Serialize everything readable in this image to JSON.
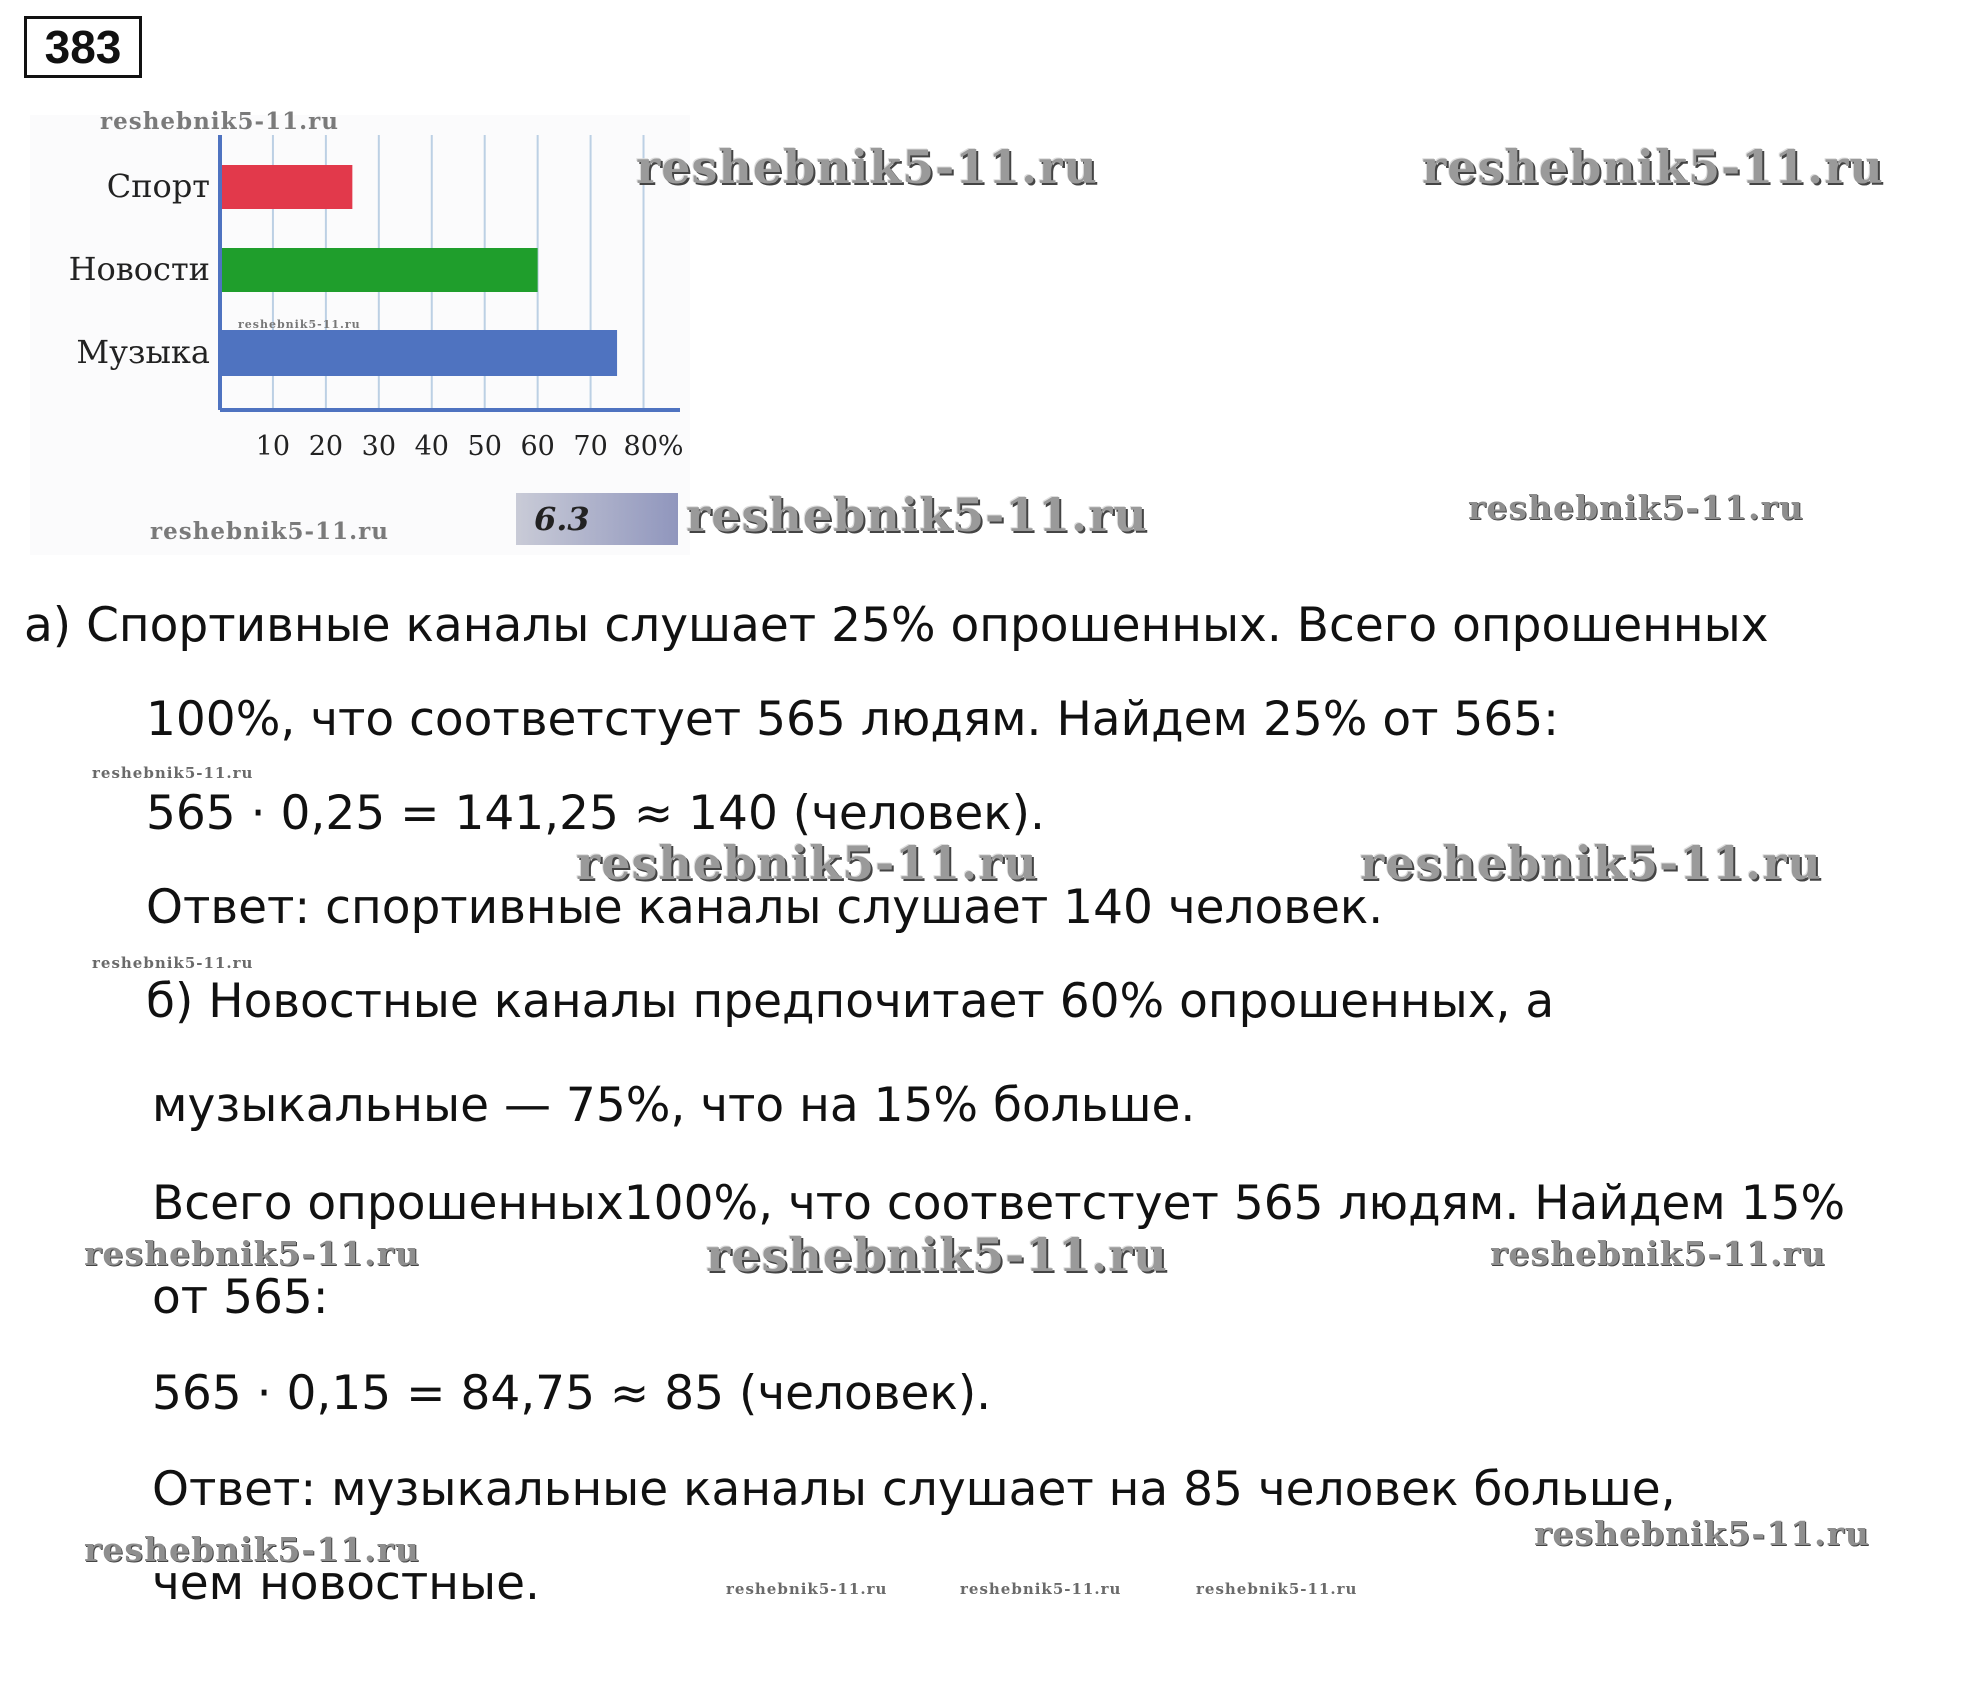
{
  "problem_number": "383",
  "figure": {
    "label": "6.3",
    "chart_data": {
      "type": "bar",
      "orientation": "horizontal",
      "categories": [
        "Спорт",
        "Новости",
        "Музыка"
      ],
      "values": [
        25,
        60,
        75
      ],
      "colors": [
        "#e2394b",
        "#1f9e2c",
        "#4f73c0"
      ],
      "x_ticks": [
        "10",
        "20",
        "30",
        "40",
        "50",
        "60",
        "70",
        "80%"
      ],
      "xlim": [
        0,
        85
      ],
      "grid": true,
      "legend": "none"
    }
  },
  "watermark_text": "reshebnik5-11.ru",
  "solution": {
    "a_line1": "а) Спортивные каналы слушает 25% опрошенных. Всего опрошенных",
    "a_line2": "100%, что соответстует 565 людям. Найдем 25% от 565:",
    "a_line3": "565 · 0,25 = 141,25 ≈ 140 (человек).",
    "a_answer": "Ответ: спортивные каналы слушает 140 человек.",
    "b_line1": "б) Новостные каналы предпочитает 60% опрошенных, а",
    "b_line2": "музыкальные — 75%, что на 15% больше.",
    "b_line3": "Всего опрошенных100%, что соответстует 565 людям. Найдем 15%",
    "b_line4": "от 565:",
    "b_line5": "565 · 0,15 = 84,75 ≈ 85 (человек).",
    "b_answer1": "Ответ: музыкальные каналы слушает на 85 человек больше,",
    "b_answer2": "чем новостные."
  }
}
